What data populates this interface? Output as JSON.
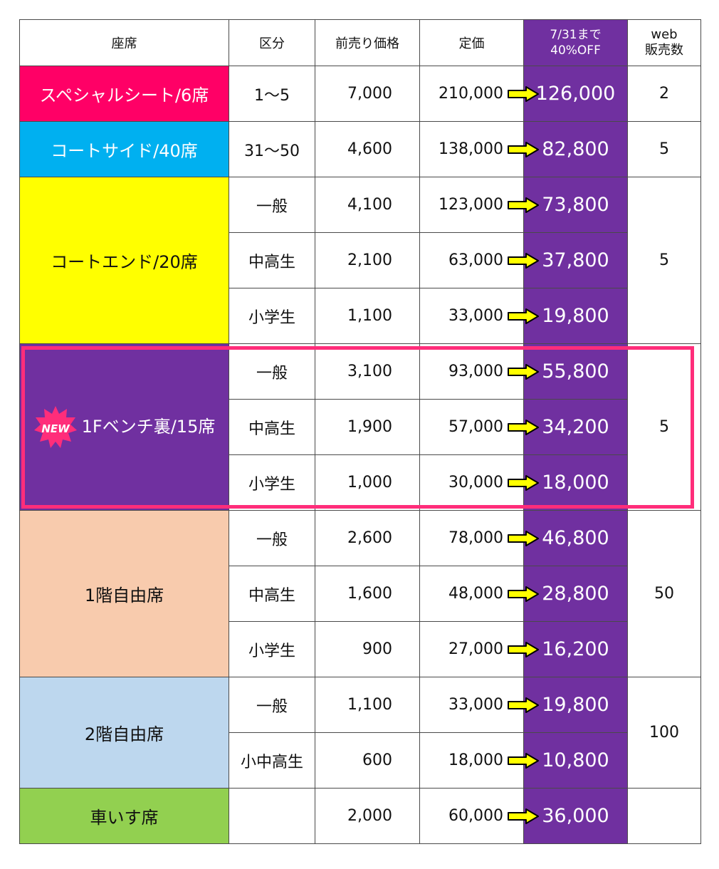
{
  "header": {
    "seat": "座席",
    "category": "区分",
    "presale": "前売り価格",
    "list_price": "定価",
    "sale_line1": "7/31まで",
    "sale_line2": "40%OFF",
    "web_line1": "web",
    "web_line2": "販売数"
  },
  "colors": {
    "special": "#ff0066",
    "court_side": "#00b0f0",
    "court_end": "#ffff00",
    "bench": "#7030a0",
    "floor1": "#f8cbad",
    "floor2": "#bdd7ee",
    "wheelchair": "#92d050",
    "sale_column": "#7030a0",
    "highlight_border": "#ff2d7a"
  },
  "badge": {
    "label": "NEW",
    "icon": "starburst-icon"
  },
  "rows": [
    {
      "seat": "スペシャルシート/6席",
      "category": "1〜5",
      "presale": "7,000",
      "list": "210,000",
      "sale": "126,000",
      "web": "2"
    },
    {
      "seat": "コートサイド/40席",
      "category": "31〜50",
      "presale": "4,600",
      "list": "138,000",
      "sale": "82,800",
      "web": "5"
    },
    {
      "seat": "コートエンド/20席",
      "category": "一般",
      "presale": "4,100",
      "list": "123,000",
      "sale": "73,800",
      "web": "5"
    },
    {
      "category": "中高生",
      "presale": "2,100",
      "list": "63,000",
      "sale": "37,800"
    },
    {
      "category": "小学生",
      "presale": "1,100",
      "list": "33,000",
      "sale": "19,800"
    },
    {
      "seat": "1Fベンチ裏/15席",
      "category": "一般",
      "presale": "3,100",
      "list": "93,000",
      "sale": "55,800",
      "web": "5"
    },
    {
      "category": "中高生",
      "presale": "1,900",
      "list": "57,000",
      "sale": "34,200"
    },
    {
      "category": "小学生",
      "presale": "1,000",
      "list": "30,000",
      "sale": "18,000"
    },
    {
      "seat": "1階自由席",
      "category": "一般",
      "presale": "2,600",
      "list": "78,000",
      "sale": "46,800",
      "web": "50"
    },
    {
      "category": "中高生",
      "presale": "1,600",
      "list": "48,000",
      "sale": "28,800"
    },
    {
      "category": "小学生",
      "presale": "900",
      "list": "27,000",
      "sale": "16,200"
    },
    {
      "seat": "2階自由席",
      "category": "一般",
      "presale": "1,100",
      "list": "33,000",
      "sale": "19,800",
      "web": "100"
    },
    {
      "category": "小中高生",
      "presale": "600",
      "list": "18,000",
      "sale": "10,800"
    },
    {
      "seat": "車いす席",
      "category": "",
      "presale": "2,000",
      "list": "60,000",
      "sale": "36,000",
      "web": ""
    }
  ]
}
